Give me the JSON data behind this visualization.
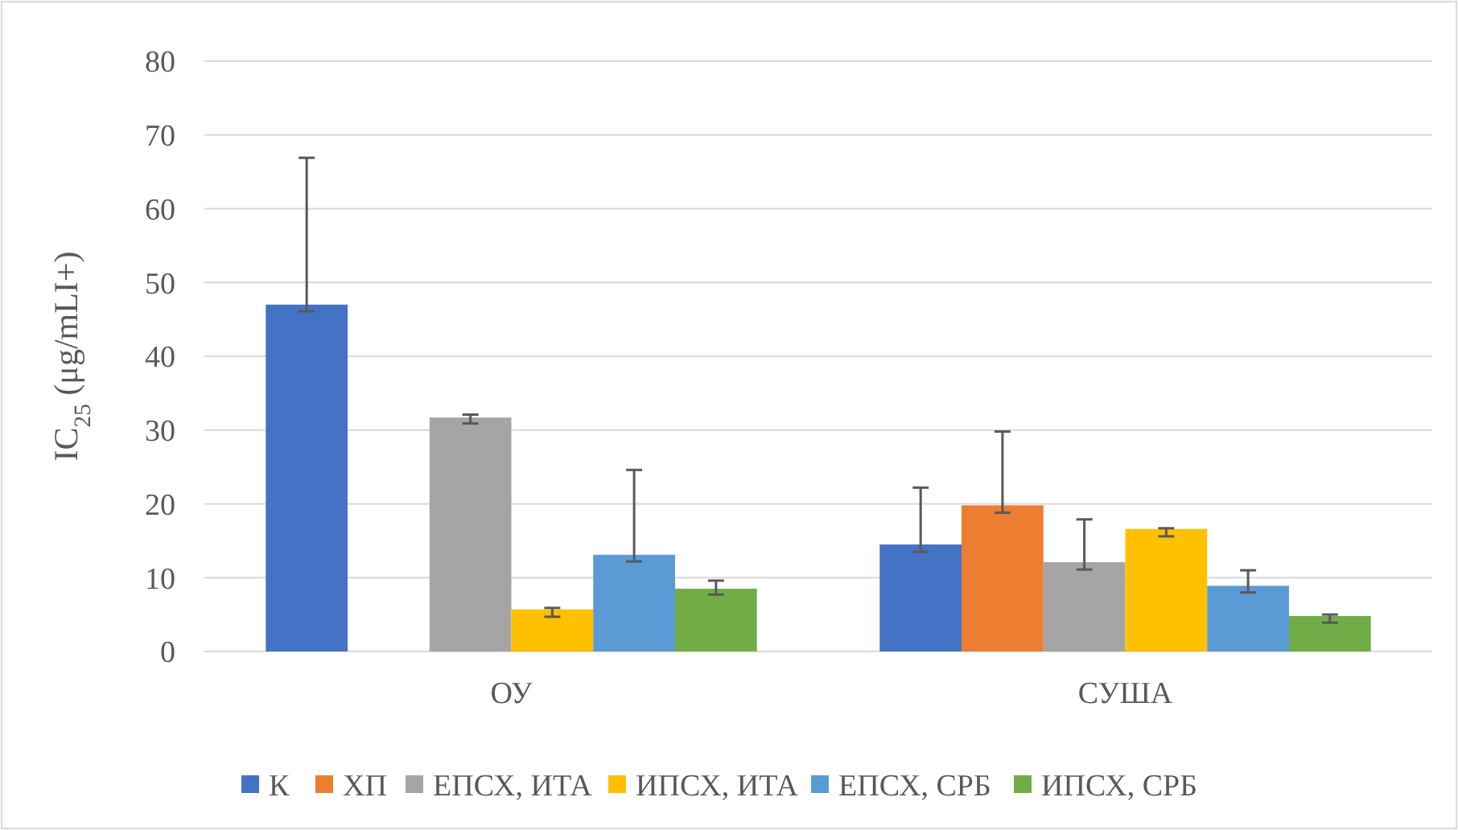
{
  "chart_data": {
    "type": "bar",
    "ylabel": "IC$_{25}$ (μg/mLI+)",
    "categories": [
      "ОУ",
      "СУША"
    ],
    "ylim": [
      0,
      80
    ],
    "yticks": [
      0,
      10,
      20,
      30,
      40,
      50,
      60,
      70,
      80
    ],
    "grid": "y",
    "legend": "bottom",
    "series": [
      {
        "name": "К",
        "color": "#4472c4",
        "values": [
          47.0,
          14.5
        ],
        "errors": [
          [
            46.1,
            66.9
          ],
          [
            13.5,
            22.2
          ]
        ]
      },
      {
        "name": "ХП",
        "color": "#ed7d31",
        "values": [
          null,
          19.8
        ],
        "errors": [
          null,
          [
            18.8,
            29.8
          ]
        ]
      },
      {
        "name": "ЕПСХ, ИТА",
        "color": "#a5a5a5",
        "values": [
          31.7,
          12.1
        ],
        "errors": [
          [
            30.9,
            32.1
          ],
          [
            11.1,
            17.9
          ]
        ]
      },
      {
        "name": "ИПСХ, ИТА",
        "color": "#ffc000",
        "values": [
          5.7,
          16.6
        ],
        "errors": [
          [
            4.7,
            5.9
          ],
          [
            15.6,
            16.7
          ]
        ]
      },
      {
        "name": "ЕПСХ, СРБ",
        "color": "#5b9bd5",
        "values": [
          13.1,
          8.9
        ],
        "errors": [
          [
            12.2,
            24.6
          ],
          [
            8.0,
            11.0
          ]
        ]
      },
      {
        "name": "ИПСХ, СРБ",
        "color": "#70ad47",
        "values": [
          8.5,
          4.8
        ],
        "errors": [
          [
            7.7,
            9.6
          ],
          [
            3.9,
            5.0
          ]
        ]
      }
    ]
  }
}
